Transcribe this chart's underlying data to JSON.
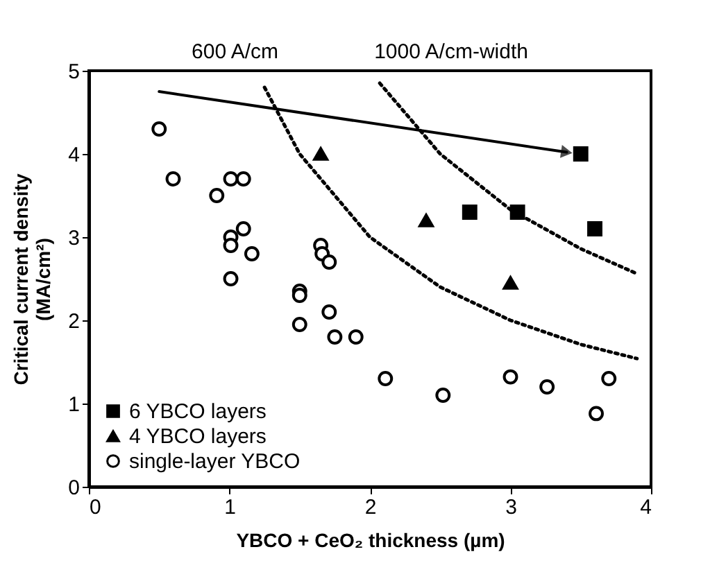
{
  "chart_data": {
    "type": "scatter",
    "xlabel": "YBCO + CeO₂ thickness (µm)",
    "ylabel": "Critical current density\n(MA/cm²)",
    "xlim": [
      0,
      4
    ],
    "ylim": [
      0,
      5
    ],
    "xticks": [
      0,
      1,
      2,
      3,
      4
    ],
    "yticks": [
      0,
      1,
      2,
      3,
      4,
      5
    ],
    "grid": false,
    "legend": "bottom left",
    "series": [
      {
        "name": "6 YBCO layers",
        "color": "#000000",
        "marker": "square",
        "x": [
          3.5,
          2.71,
          3.05,
          3.6
        ],
        "values": [
          4.0,
          3.3,
          3.3,
          3.1
        ]
      },
      {
        "name": "4 YBCO layers",
        "color": "#000000",
        "marker": "triangle",
        "x": [
          1.65,
          2.4,
          3.0
        ],
        "values": [
          4.0,
          3.2,
          2.45
        ]
      },
      {
        "name": "single-layer YBCO",
        "color": "#000000",
        "marker": "circle",
        "x": [
          0.5,
          0.6,
          0.91,
          1.01,
          1.1,
          1.1,
          1.01,
          1.01,
          1.16,
          1.01,
          1.65,
          1.66,
          1.71,
          1.5,
          1.5,
          1.5,
          1.71,
          1.75,
          1.9,
          2.11,
          2.52,
          3.0,
          3.26,
          3.61,
          3.7
        ],
        "values": [
          4.3,
          3.7,
          3.5,
          3.7,
          3.7,
          3.1,
          3.0,
          2.9,
          2.8,
          2.5,
          2.9,
          2.8,
          2.7,
          2.35,
          2.3,
          1.95,
          2.1,
          1.8,
          1.8,
          1.3,
          1.1,
          1.32,
          1.2,
          0.88,
          1.3
        ]
      },
      {
        "name": "600 A/cm",
        "type": "line",
        "color": "#000000",
        "line_style": "dotted",
        "x": [
          1.25,
          1.5,
          2.0,
          2.5,
          3.0,
          3.5,
          3.9
        ],
        "values": [
          4.8,
          4.0,
          3.0,
          2.4,
          2.0,
          1.71,
          1.54
        ]
      },
      {
        "name": "1000 A/cm-width",
        "type": "line",
        "color": "#000000",
        "line_style": "dotted",
        "x": [
          2.07,
          2.5,
          3.0,
          3.5,
          3.9
        ],
        "values": [
          4.85,
          4.0,
          3.33,
          2.86,
          2.56
        ]
      },
      {
        "type": "line",
        "color": "#000000",
        "line_style": "solid",
        "x": [
          0.5,
          3.4
        ],
        "values": [
          4.75,
          4.02
        ]
      }
    ]
  }
}
